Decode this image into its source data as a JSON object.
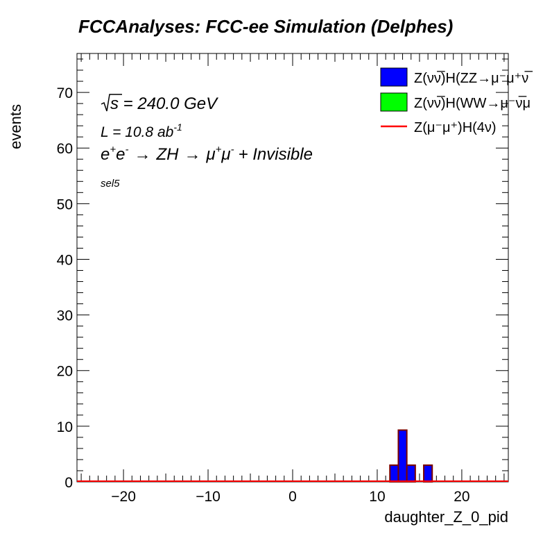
{
  "chart_data": {
    "type": "bar",
    "title": "FCCAnalyses: FCC-ee Simulation (Delphes)",
    "xlabel": "daughter_Z_0_pid",
    "ylabel": "events",
    "xlim": [
      -25.5,
      25.5
    ],
    "ylim": [
      0,
      77
    ],
    "xticks": [
      -20,
      -10,
      0,
      10,
      20
    ],
    "xtick_labels": [
      "−20",
      "−10",
      "0",
      "10",
      "20"
    ],
    "yticks": [
      0,
      10,
      20,
      30,
      40,
      50,
      60,
      70
    ],
    "ytick_labels": [
      "0",
      "10",
      "20",
      "30",
      "40",
      "50",
      "60",
      "70"
    ],
    "bin_width": 1,
    "grid": false,
    "legend_position": "top-right",
    "annotations": {
      "sqrt_s": "s",
      "energy": " = 240.0 GeV",
      "lumi_prefix": "L = 10.8 ab",
      "lumi_exp": "-1",
      "process_e1": "e",
      "process_e1_sup": "+",
      "process_e2": "e",
      "process_e2_sup": "-",
      "arrow1": "→",
      "process_zh": "ZH",
      "arrow2": "→",
      "process_mu1": "μ",
      "process_mu1_sup": "+",
      "process_mu2": "μ",
      "process_mu2_sup": "-",
      "process_tail": "+ Invisible",
      "selection": "sel5"
    },
    "series": [
      {
        "name": "Z(νν̅)H(ZZ→μ⁻μ⁺νν̅)",
        "legend_text": "Z(νν̅)H(ZZ→μ⁻μ⁺ν̅",
        "style": "filled",
        "color": "#0000ff",
        "bins": [
          {
            "x": 12,
            "value": 3
          },
          {
            "x": 13,
            "value": 9.3
          },
          {
            "x": 14,
            "value": 3
          },
          {
            "x": 16,
            "value": 3
          }
        ]
      },
      {
        "name": "Z(νν̅)H(WW→μ⁻ν̅μ⁺ν)",
        "legend_text": "Z(νν̅)H(WW→μ⁻ν̅μ",
        "style": "filled",
        "color": "#00ff00",
        "bins": []
      },
      {
        "name": "Z(μ⁻μ⁺)H(4ν)",
        "legend_text": "Z(μ⁻μ⁺)H(4ν)",
        "style": "line",
        "color": "#ff0000",
        "bins": []
      }
    ]
  }
}
